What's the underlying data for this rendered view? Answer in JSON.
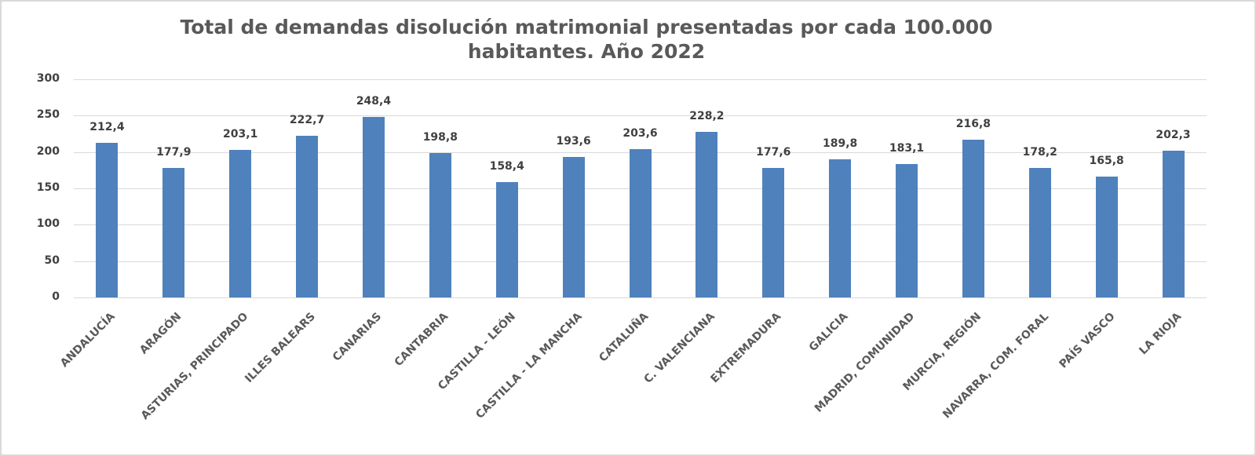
{
  "chart_data": {
    "type": "bar",
    "title": "Total de demandas disolución matrimonial presentadas por cada 100.000 habitantes. Año 2022",
    "title_lines": [
      "Total de demandas disolución matrimonial presentadas por cada 100.000",
      "habitantes. Año 2022"
    ],
    "xlabel": "",
    "ylabel": "",
    "ylim": [
      0,
      300
    ],
    "yticks": [
      "0",
      "50",
      "100",
      "150",
      "200",
      "250",
      "300"
    ],
    "grid": true,
    "legend": null,
    "bar_color": "#4f81bd",
    "categories": [
      "ANDALUCÍA",
      "ARAGÓN",
      "ASTURIAS, PRINCIPADO",
      "ILLES BALEARS",
      "CANARIAS",
      "CANTABRIA",
      "CASTILLA - LEÓN",
      "CASTILLA - LA MANCHA",
      "CATALUÑA",
      "C. VALENCIANA",
      "EXTREMADURA",
      "GALICIA",
      "MADRID, COMUNIDAD",
      "MURCIA, REGIÓN",
      "NAVARRA, COM. FORAL",
      "PAÍS VASCO",
      "LA RIOJA"
    ],
    "values": [
      212.4,
      177.9,
      203.1,
      222.7,
      248.4,
      198.8,
      158.4,
      193.6,
      203.6,
      228.2,
      177.6,
      189.8,
      183.1,
      216.8,
      178.2,
      165.8,
      202.3
    ],
    "data_labels": [
      "212,4",
      "177,9",
      "203,1",
      "222,7",
      "248,4",
      "198,8",
      "158,4",
      "193,6",
      "203,6",
      "228,2",
      "177,6",
      "189,8",
      "183,1",
      "216,8",
      "178,2",
      "165,8",
      "202,3"
    ]
  }
}
